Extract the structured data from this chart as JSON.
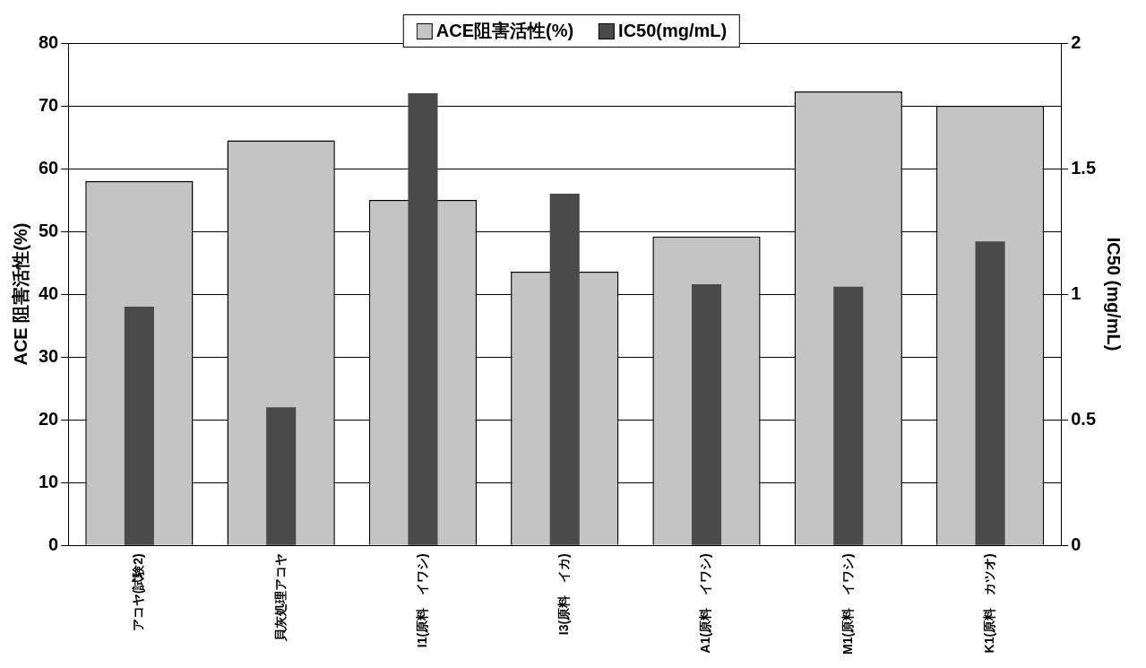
{
  "chart_data": {
    "type": "bar",
    "categories": [
      "アコヤ(試験2)",
      "貝灰処理アコヤ",
      "I1(原料　イワシ)",
      "I3(原料　イカ)",
      "A1(原料　イワシ)",
      "M1(原料　イワシ)",
      "K1(原料　カツオ)"
    ],
    "series": [
      {
        "name": "ACE阻害活性(%)",
        "color": "#c4c4c4",
        "values": [
          58,
          64.5,
          55,
          43.6,
          49.2,
          72.3,
          70
        ]
      },
      {
        "name": "IC50(mg/mL)",
        "color": "#4a4a4a",
        "axis": "y2",
        "values": [
          0.95,
          0.55,
          1.8,
          1.4,
          1.04,
          1.03,
          1.21
        ]
      }
    ],
    "ylabel": "ACE 阻害活性(%)",
    "y2label": "IC50 (mg/mL)",
    "ylim": [
      0,
      80
    ],
    "yticks": [
      0,
      10,
      20,
      30,
      40,
      50,
      60,
      70,
      80
    ],
    "y2lim": [
      0,
      2
    ],
    "y2ticks": [
      0,
      0.5,
      1,
      1.5,
      2
    ],
    "grid": "y",
    "legend": "top"
  }
}
